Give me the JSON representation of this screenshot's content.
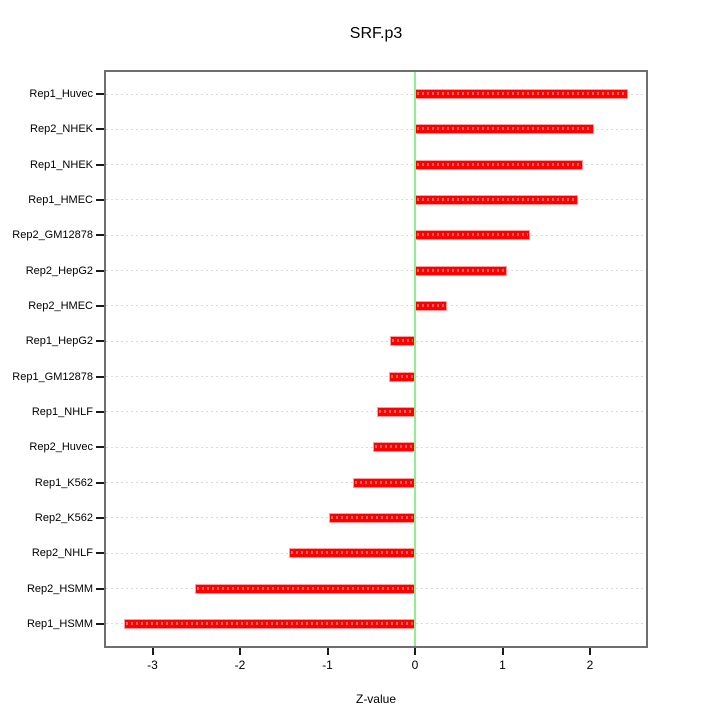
{
  "title": "SRF.p3",
  "x_axis": {
    "label": "Z-value",
    "ticks": [
      -3,
      -2,
      -1,
      0,
      1,
      2
    ]
  },
  "colors": {
    "bar_fill": "#ff0000",
    "bar_border": "#ff9e9e",
    "zero_line": "#90ee90",
    "grid_line": "#d9d9d9",
    "box_border": "#6e6e6e",
    "tick": "#1a1a1a",
    "text": "#000000",
    "background": "#ffffff"
  },
  "chart_data": {
    "type": "bar",
    "orientation": "horizontal",
    "title": "SRF.p3",
    "xlabel": "Z-value",
    "ylabel": "",
    "categories": [
      "Rep1_Huvec",
      "Rep2_NHEK",
      "Rep1_NHEK",
      "Rep1_HMEC",
      "Rep2_GM12878",
      "Rep2_HepG2",
      "Rep2_HMEC",
      "Rep1_HepG2",
      "Rep1_GM12878",
      "Rep1_NHLF",
      "Rep2_Huvec",
      "Rep1_K562",
      "Rep2_K562",
      "Rep2_NHLF",
      "Rep2_HSMM",
      "Rep1_HSMM"
    ],
    "values": [
      2.43,
      2.04,
      1.92,
      1.86,
      1.31,
      1.05,
      0.36,
      -0.29,
      -0.3,
      -0.43,
      -0.48,
      -0.71,
      -0.98,
      -1.44,
      -2.52,
      -3.33
    ],
    "xlim": [
      -3.55,
      2.65
    ],
    "x_ticks": [
      -3,
      -2,
      -1,
      0,
      1,
      2
    ],
    "zero_reference_line": 0,
    "grid": "dotted horizontal line per category",
    "legend": "none"
  }
}
